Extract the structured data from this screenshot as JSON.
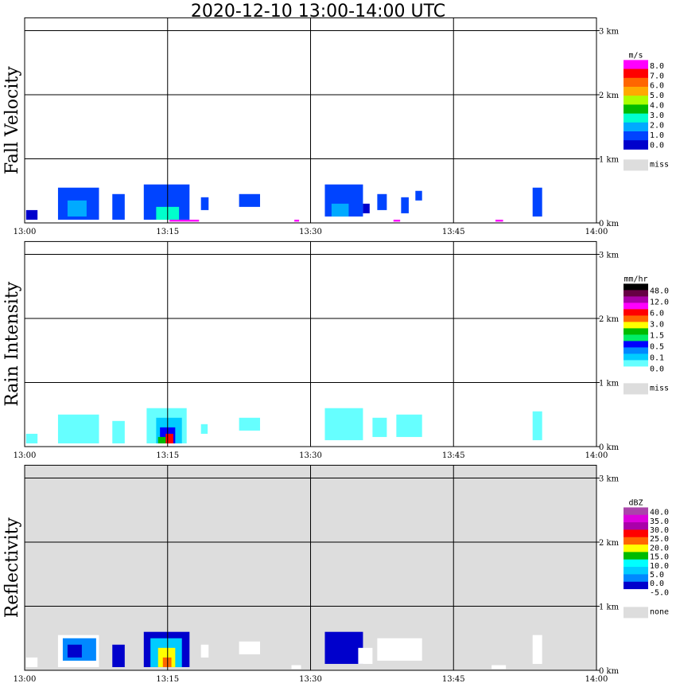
{
  "title": "2020-12-10   13:00-14:00 UTC",
  "x_tick_labels": [
    "13:00",
    "13:15",
    "13:30",
    "13:45",
    "14:00"
  ],
  "y_tick_labels": [
    "0 km",
    "1 km",
    "2 km",
    "3 km"
  ],
  "chart_data": [
    {
      "type": "heatmap",
      "title": "Fall Velocity",
      "xlim": [
        "13:00",
        "14:00"
      ],
      "ylim_km": [
        0,
        3.2
      ],
      "grid": true,
      "background": "#ffffff",
      "colorbar": {
        "unit": "m/s",
        "labels": [
          "8.0",
          "7.0",
          "6.0",
          "5.0",
          "4.0",
          "3.0",
          "2.0",
          "1.0",
          "0.0"
        ],
        "colors": [
          "#ff00ff",
          "#ff0000",
          "#ff6600",
          "#ffaa00",
          "#aaff00",
          "#00bb00",
          "#00ffcc",
          "#00aaff",
          "#0044ff",
          "#0000cc"
        ],
        "missing_label": "miss",
        "missing_color": "#dddddd"
      },
      "echoes": [
        {
          "t0": 0.15,
          "t1": 1.35,
          "z0": 0.05,
          "z1": 0.2,
          "color": "#0000cc"
        },
        {
          "t0": 3.5,
          "t1": 7.8,
          "z0": 0.05,
          "z1": 0.55,
          "color": "#0044ff"
        },
        {
          "t0": 4.5,
          "t1": 6.5,
          "z0": 0.1,
          "z1": 0.35,
          "color": "#00aaff"
        },
        {
          "t0": 9.2,
          "t1": 10.5,
          "z0": 0.05,
          "z1": 0.45,
          "color": "#0044ff"
        },
        {
          "t0": 12.5,
          "t1": 17.3,
          "z0": 0.05,
          "z1": 0.6,
          "color": "#0044ff"
        },
        {
          "t0": 13.8,
          "t1": 16.2,
          "z0": 0.05,
          "z1": 0.25,
          "color": "#00ffcc"
        },
        {
          "t0": 15.2,
          "t1": 18.3,
          "z0": 0.02,
          "z1": 0.05,
          "color": "#ff00ff"
        },
        {
          "t0": 18.5,
          "t1": 19.3,
          "z0": 0.2,
          "z1": 0.4,
          "color": "#0044ff"
        },
        {
          "t0": 22.5,
          "t1": 24.7,
          "z0": 0.25,
          "z1": 0.45,
          "color": "#0044ff"
        },
        {
          "t0": 28.3,
          "t1": 28.8,
          "z0": 0.02,
          "z1": 0.05,
          "color": "#ff00ff"
        },
        {
          "t0": 31.5,
          "t1": 35.5,
          "z0": 0.1,
          "z1": 0.6,
          "color": "#0044ff"
        },
        {
          "t0": 32.2,
          "t1": 34.0,
          "z0": 0.1,
          "z1": 0.3,
          "color": "#00aaff"
        },
        {
          "t0": 35.5,
          "t1": 36.2,
          "z0": 0.15,
          "z1": 0.3,
          "color": "#0000cc"
        },
        {
          "t0": 37.0,
          "t1": 38.0,
          "z0": 0.2,
          "z1": 0.45,
          "color": "#0044ff"
        },
        {
          "t0": 38.7,
          "t1": 39.4,
          "z0": 0.02,
          "z1": 0.05,
          "color": "#ff00ff"
        },
        {
          "t0": 39.5,
          "t1": 40.3,
          "z0": 0.15,
          "z1": 0.4,
          "color": "#0044ff"
        },
        {
          "t0": 41.0,
          "t1": 41.7,
          "z0": 0.35,
          "z1": 0.5,
          "color": "#0044ff"
        },
        {
          "t0": 49.4,
          "t1": 50.2,
          "z0": 0.02,
          "z1": 0.05,
          "color": "#ff00ff"
        },
        {
          "t0": 53.3,
          "t1": 54.3,
          "z0": 0.1,
          "z1": 0.55,
          "color": "#0044ff"
        }
      ]
    },
    {
      "type": "heatmap",
      "title": "Rain Intensity",
      "xlim": [
        "13:00",
        "14:00"
      ],
      "ylim_km": [
        0,
        3.2
      ],
      "grid": true,
      "background": "#ffffff",
      "colorbar": {
        "unit": "mm/hr",
        "labels": [
          "48.0",
          "12.0",
          "6.0",
          "3.0",
          "1.5",
          "0.5",
          "0.1",
          "0.0"
        ],
        "colors": [
          "#000000",
          "#660044",
          "#aa00aa",
          "#ff00ff",
          "#ff0000",
          "#ff6600",
          "#ffff00",
          "#00bb00",
          "#00ee66",
          "#0000ff",
          "#0088ff",
          "#00ccff",
          "#66ffff",
          "#ffffff"
        ],
        "missing_label": "miss",
        "missing_color": "#dddddd"
      },
      "echoes": [
        {
          "t0": 0.15,
          "t1": 1.35,
          "z0": 0.05,
          "z1": 0.2,
          "color": "#66ffff"
        },
        {
          "t0": 3.5,
          "t1": 7.8,
          "z0": 0.05,
          "z1": 0.5,
          "color": "#66ffff"
        },
        {
          "t0": 9.2,
          "t1": 10.5,
          "z0": 0.05,
          "z1": 0.4,
          "color": "#66ffff"
        },
        {
          "t0": 12.8,
          "t1": 17.0,
          "z0": 0.05,
          "z1": 0.6,
          "color": "#66ffff"
        },
        {
          "t0": 13.8,
          "t1": 16.5,
          "z0": 0.05,
          "z1": 0.45,
          "color": "#00ccff"
        },
        {
          "t0": 14.2,
          "t1": 15.8,
          "z0": 0.05,
          "z1": 0.3,
          "color": "#0000ff"
        },
        {
          "t0": 14.0,
          "t1": 14.8,
          "z0": 0.05,
          "z1": 0.15,
          "color": "#00bb00"
        },
        {
          "t0": 14.8,
          "t1": 15.6,
          "z0": 0.05,
          "z1": 0.2,
          "color": "#ff0000"
        },
        {
          "t0": 18.5,
          "t1": 19.2,
          "z0": 0.2,
          "z1": 0.35,
          "color": "#66ffff"
        },
        {
          "t0": 22.5,
          "t1": 24.7,
          "z0": 0.25,
          "z1": 0.45,
          "color": "#66ffff"
        },
        {
          "t0": 31.5,
          "t1": 35.5,
          "z0": 0.1,
          "z1": 0.6,
          "color": "#66ffff"
        },
        {
          "t0": 36.5,
          "t1": 38.0,
          "z0": 0.15,
          "z1": 0.45,
          "color": "#66ffff"
        },
        {
          "t0": 39.0,
          "t1": 41.7,
          "z0": 0.15,
          "z1": 0.5,
          "color": "#66ffff"
        },
        {
          "t0": 53.3,
          "t1": 54.3,
          "z0": 0.1,
          "z1": 0.55,
          "color": "#66ffff"
        }
      ]
    },
    {
      "type": "heatmap",
      "title": "Reflectivity",
      "xlim": [
        "13:00",
        "14:00"
      ],
      "ylim_km": [
        0,
        3.2
      ],
      "grid": true,
      "background": "#dddddd",
      "colorbar": {
        "unit": "dBZ",
        "labels": [
          "40.0",
          "35.0",
          "30.0",
          "25.0",
          "20.0",
          "15.0",
          "10.0",
          "5.0",
          "0.0",
          "-5.0"
        ],
        "colors": [
          "#aa44aa",
          "#dd00dd",
          "#aa00aa",
          "#ff0000",
          "#ff6600",
          "#ffff00",
          "#00bb00",
          "#00ffff",
          "#00ccff",
          "#0088ff",
          "#0000cc",
          "#ffffff"
        ],
        "missing_label": "none",
        "missing_color": "#dddddd"
      },
      "echoes": [
        {
          "t0": 0.15,
          "t1": 1.35,
          "z0": 0.05,
          "z1": 0.2,
          "color": "#ffffff"
        },
        {
          "t0": 3.5,
          "t1": 7.8,
          "z0": 0.05,
          "z1": 0.55,
          "color": "#ffffff"
        },
        {
          "t0": 4.0,
          "t1": 7.5,
          "z0": 0.15,
          "z1": 0.5,
          "color": "#0088ff"
        },
        {
          "t0": 4.5,
          "t1": 6.0,
          "z0": 0.2,
          "z1": 0.4,
          "color": "#0000cc"
        },
        {
          "t0": 9.2,
          "t1": 10.5,
          "z0": 0.05,
          "z1": 0.4,
          "color": "#0000cc"
        },
        {
          "t0": 12.5,
          "t1": 17.3,
          "z0": 0.05,
          "z1": 0.6,
          "color": "#0000cc"
        },
        {
          "t0": 13.2,
          "t1": 16.5,
          "z0": 0.05,
          "z1": 0.5,
          "color": "#00ccff"
        },
        {
          "t0": 14.0,
          "t1": 15.8,
          "z0": 0.05,
          "z1": 0.35,
          "color": "#ffff00"
        },
        {
          "t0": 14.5,
          "t1": 15.4,
          "z0": 0.05,
          "z1": 0.2,
          "color": "#ff6600"
        },
        {
          "t0": 18.5,
          "t1": 19.3,
          "z0": 0.2,
          "z1": 0.4,
          "color": "#ffffff"
        },
        {
          "t0": 22.5,
          "t1": 24.7,
          "z0": 0.25,
          "z1": 0.45,
          "color": "#ffffff"
        },
        {
          "t0": 28.0,
          "t1": 29.0,
          "z0": 0.02,
          "z1": 0.08,
          "color": "#ffffff"
        },
        {
          "t0": 31.5,
          "t1": 35.5,
          "z0": 0.1,
          "z1": 0.6,
          "color": "#0000cc"
        },
        {
          "t0": 35.0,
          "t1": 36.5,
          "z0": 0.1,
          "z1": 0.35,
          "color": "#ffffff"
        },
        {
          "t0": 37.0,
          "t1": 41.7,
          "z0": 0.15,
          "z1": 0.5,
          "color": "#ffffff"
        },
        {
          "t0": 49.0,
          "t1": 50.5,
          "z0": 0.02,
          "z1": 0.08,
          "color": "#ffffff"
        },
        {
          "t0": 53.3,
          "t1": 54.3,
          "z0": 0.1,
          "z1": 0.55,
          "color": "#ffffff"
        }
      ]
    }
  ]
}
